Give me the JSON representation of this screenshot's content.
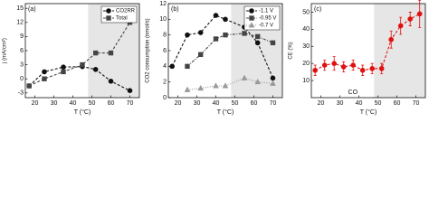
{
  "chart_data": [
    {
      "type": "line",
      "panel": "(a)",
      "xlabel": "T (°C)",
      "ylabel": "j (mA/cm²)",
      "x": [
        17,
        25,
        35,
        45,
        52,
        60,
        70
      ],
      "xlim": [
        15,
        75
      ],
      "xticks": [
        20,
        30,
        40,
        50,
        60,
        70
      ],
      "ylim": [
        -4,
        16
      ],
      "yticks": [
        -3,
        0,
        3,
        6,
        9,
        12,
        15
      ],
      "shade": [
        48,
        75
      ],
      "legend": "upper right",
      "series": [
        {
          "name": "CO2RR",
          "color": "#111111",
          "marker": "circle",
          "line_style": "dashed",
          "values": [
            -1.5,
            1.5,
            2.5,
            2.6,
            2.0,
            -0.5,
            -2.5
          ]
        },
        {
          "name": "Total",
          "color": "#444444",
          "marker": "square",
          "line_style": "dashed",
          "values": [
            -1.5,
            0,
            1.5,
            3,
            5.5,
            5.5,
            12
          ]
        }
      ]
    },
    {
      "type": "line",
      "panel": "(b)",
      "xlabel": "T (°C)",
      "ylabel": "CO2 consumption (nmol/s)",
      "x": [
        17,
        25,
        32,
        40,
        45,
        55,
        62,
        70
      ],
      "xlim": [
        15,
        75
      ],
      "xticks": [
        20,
        30,
        40,
        50,
        60,
        70
      ],
      "ylim": [
        0,
        12
      ],
      "yticks": [
        0,
        2,
        4,
        6,
        8,
        10,
        12
      ],
      "shade": [
        48,
        75
      ],
      "legend": "upper right",
      "series": [
        {
          "name": "-1.1 V",
          "color": "#111111",
          "marker": "circle",
          "line_style": "dashed",
          "values": [
            4,
            8,
            8.3,
            10.5,
            10,
            9,
            7,
            2.5
          ]
        },
        {
          "name": "-0.95 V",
          "color": "#444444",
          "marker": "square",
          "line_style": "dashdot",
          "values": [
            null,
            4,
            5.5,
            7.5,
            8,
            8.2,
            7.8,
            7
          ]
        },
        {
          "name": "-0.7 V",
          "color": "#999999",
          "marker": "triangle",
          "line_style": "dotted",
          "values": [
            null,
            1,
            1.2,
            1.5,
            1.5,
            2.5,
            2,
            1.8
          ]
        }
      ]
    },
    {
      "type": "line",
      "panel": "(c)",
      "xlabel": "T (°C)",
      "ylabel": "CE (%)",
      "annotation": "CO",
      "x": [
        17,
        22,
        27,
        32,
        37,
        42,
        47,
        52,
        57,
        62,
        67,
        72
      ],
      "xlim": [
        15,
        75
      ],
      "xticks": [
        20,
        30,
        40,
        50,
        60,
        70
      ],
      "ylim": [
        0,
        55
      ],
      "yticks": [
        10,
        20,
        30,
        40,
        50
      ],
      "shade": [
        48,
        75
      ],
      "series": [
        {
          "color": "#e01010",
          "marker": "circle",
          "line_style": "dashed",
          "values": [
            16,
            19,
            20,
            18,
            19,
            16,
            17,
            17,
            34,
            42,
            46,
            49
          ],
          "errors": [
            3,
            3,
            4,
            3,
            3,
            3,
            3,
            3,
            5,
            5,
            4,
            8
          ]
        }
      ]
    }
  ]
}
